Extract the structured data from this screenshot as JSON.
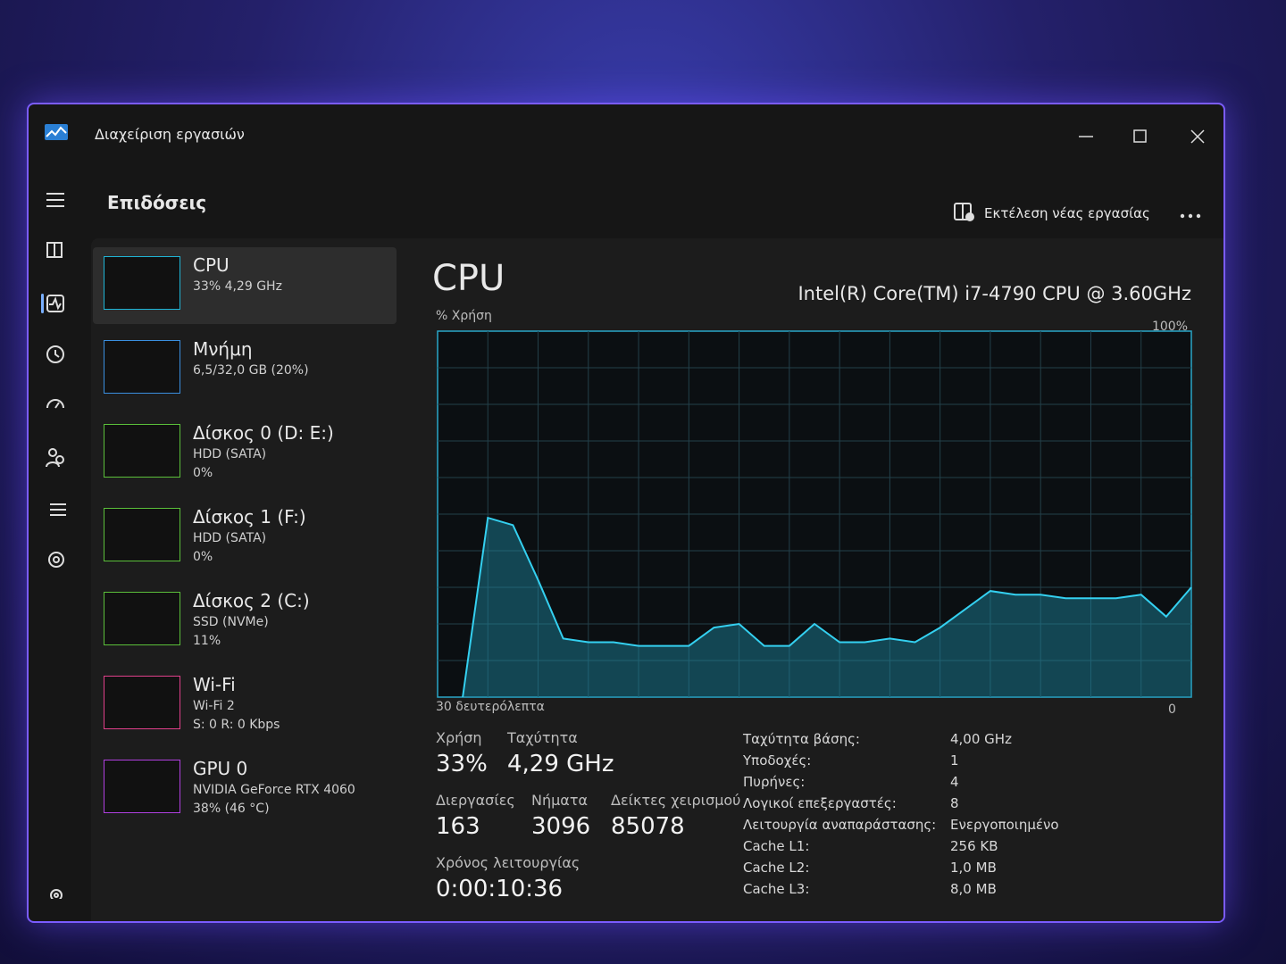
{
  "window": {
    "title": "Διαχείριση εργασιών"
  },
  "header": {
    "title": "Επιδόσεις",
    "run_task": "Εκτέλεση νέας εργασίας"
  },
  "sidebar": {
    "items": [
      {
        "name": "CPU",
        "detail": [
          "33% 4,29 GHz"
        ]
      },
      {
        "name": "Μνήμη",
        "detail": [
          "6,5/32,0 GB (20%)"
        ]
      },
      {
        "name": "Δίσκος 0 (D: E:)",
        "detail": [
          "HDD (SATA)",
          "0%"
        ]
      },
      {
        "name": "Δίσκος 1 (F:)",
        "detail": [
          "HDD (SATA)",
          "0%"
        ]
      },
      {
        "name": "Δίσκος 2 (C:)",
        "detail": [
          "SSD (NVMe)",
          "11%"
        ]
      },
      {
        "name": "Wi-Fi",
        "detail": [
          "Wi-Fi 2",
          "S: 0 R: 0 Kbps"
        ]
      },
      {
        "name": "GPU 0",
        "detail": [
          "NVIDIA GeForce RTX 4060",
          "38% (46 °C)"
        ]
      }
    ]
  },
  "panel": {
    "title": "CPU",
    "model": "Intel(R) Core(TM) i7-4790 CPU @ 3.60GHz",
    "graph": {
      "y_label": "% Χρήση",
      "y_max_label": "100%",
      "x_start_label": "30 δευτερόλεπτα",
      "x_end_label": "0",
      "ylim": [
        0,
        100
      ],
      "values": [
        null,
        0,
        49,
        47,
        32,
        16,
        15,
        15,
        14,
        14,
        14,
        19,
        20,
        14,
        14,
        20,
        15,
        15,
        16,
        15,
        19,
        24,
        29,
        28,
        28,
        27,
        27,
        27,
        28,
        22,
        30
      ]
    },
    "stats": [
      [
        {
          "label": "Χρήση",
          "value": "33%"
        },
        {
          "label": "Ταχύτητα",
          "value": "4,29 GHz"
        }
      ],
      [
        {
          "label": "Διεργασίες",
          "value": "163"
        },
        {
          "label": "Νήματα",
          "value": "3096"
        },
        {
          "label": "Δείκτες χειρισμού",
          "value": "85078"
        }
      ],
      [
        {
          "label": "Χρόνος λειτουργίας",
          "value": "0:00:10:36"
        }
      ]
    ],
    "details": [
      [
        "Ταχύτητα βάσης:",
        "4,00 GHz"
      ],
      [
        "Υποδοχές:",
        "1"
      ],
      [
        "Πυρήνες:",
        "4"
      ],
      [
        "Λογικοί επεξεργαστές:",
        "8"
      ],
      [
        "Λειτουργία αναπαράστασης:",
        "Ενεργοποιημένο"
      ],
      [
        "Cache L1:",
        "256 KB"
      ],
      [
        "Cache L2:",
        "1,0 MB"
      ],
      [
        "Cache L3:",
        "8,0 MB"
      ]
    ]
  }
}
